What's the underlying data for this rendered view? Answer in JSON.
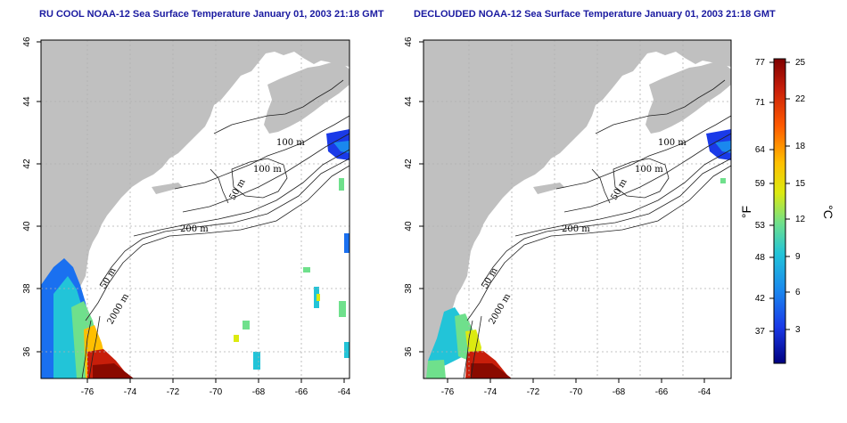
{
  "panels": [
    {
      "title": "RU COOL NOAA-12 Sea Surface Temperature January 01, 2003 21:18 GMT",
      "contour_labels": [
        "100 m",
        "100 m",
        "50 m",
        "200 m",
        "50 m",
        "2000 m"
      ]
    },
    {
      "title": "DECLOUDED NOAA-12 Sea Surface Temperature January 01, 2003 21:18 GMT",
      "contour_labels": [
        "100 m",
        "100 m",
        "50 m",
        "200 m",
        "50 m",
        "2000 m"
      ]
    }
  ],
  "axes": {
    "lon_ticks": [
      "-76",
      "-74",
      "-72",
      "-70",
      "-68",
      "-66",
      "-64"
    ],
    "lat_ticks": [
      "36",
      "38",
      "40",
      "42",
      "44",
      "46"
    ]
  },
  "colorbar": {
    "fahrenheit_unit": "°F",
    "celsius_unit": "°C",
    "fahrenheit_ticks": [
      "77",
      "71",
      "64",
      "59",
      "53",
      "48",
      "42",
      "37"
    ],
    "celsius_ticks": [
      "25",
      "22",
      "18",
      "15",
      "12",
      "9",
      "6",
      "3"
    ]
  },
  "colors": {
    "land": "#c0c0c0",
    "water": "#ffffff",
    "title": "#1a1aa0",
    "gradient": [
      "#7f0000",
      "#d42a10",
      "#ff6a00",
      "#ffc400",
      "#d7e81a",
      "#5fe0a0",
      "#18b8e0",
      "#1a70f0",
      "#1a2ae0",
      "#000080"
    ]
  }
}
